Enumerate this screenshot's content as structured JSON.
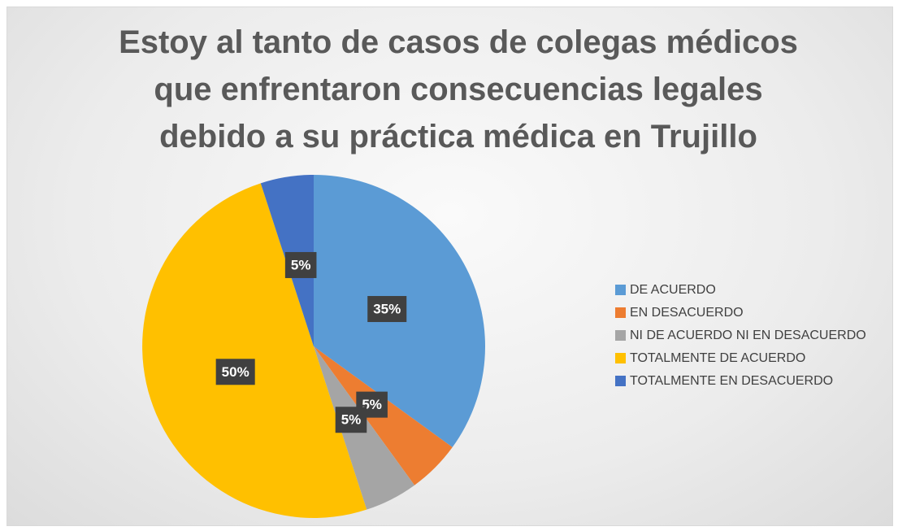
{
  "chart_data": {
    "type": "pie",
    "title": "Estoy al tanto de casos de colegas médicos que enfrentaron consecuencias legales debido a su práctica médica en Trujillo",
    "categories": [
      "DE ACUERDO",
      "EN DESACUERDO",
      "NI DE ACUERDO NI EN DESACUERDO",
      "TOTALMENTE DE ACUERDO",
      "TOTALMENTE EN DESACUERDO"
    ],
    "values": [
      35,
      5,
      5,
      50,
      5
    ],
    "value_labels": [
      "35%",
      "5%",
      "5%",
      "50%",
      "5%"
    ],
    "colors": [
      "#5b9bd5",
      "#ed7d31",
      "#a5a5a5",
      "#ffc000",
      "#4472c4"
    ],
    "legend": "right"
  }
}
